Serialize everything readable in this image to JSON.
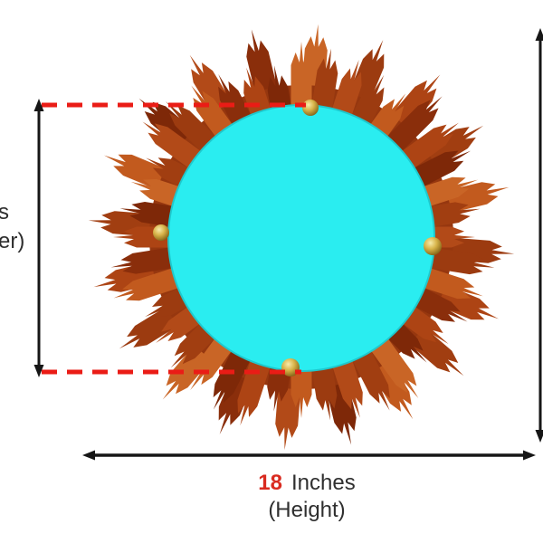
{
  "annotations": {
    "height": {
      "value": "18",
      "unit": "Inches",
      "caption": "(Height)"
    },
    "left_label_fragments": {
      "line1": "s",
      "line2": "er)"
    }
  },
  "colors": {
    "mirror_cyan": "#2AEDF0",
    "mirror_rim": "#1EC9CE",
    "dash_red": "#EA1C16",
    "accent_red": "#D92B20",
    "text_dark": "#2F2F2F",
    "dimension_black": "#161616",
    "brass_knob": "#D8B44A",
    "wood_ring": "#96370F",
    "wood_palette": [
      "#B24A18",
      "#9C3B10",
      "#C25A1E",
      "#8A2E0B",
      "#AD4414",
      "#7E2808",
      "#C96526",
      "#A13E11"
    ]
  }
}
